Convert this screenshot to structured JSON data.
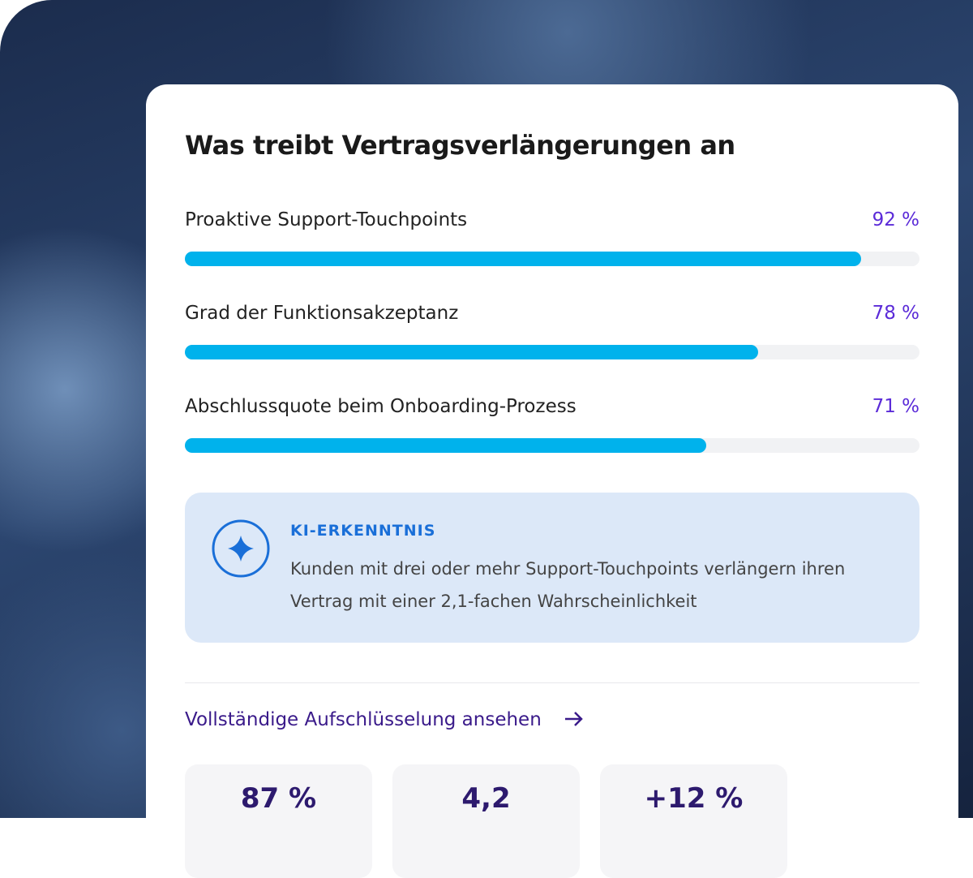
{
  "card": {
    "title": "Was treibt Vertragsverlängerungen an"
  },
  "chart_data": {
    "type": "bar",
    "orientation": "horizontal",
    "categories": [
      "Proaktive Support-Touchpoints",
      "Grad der Funktionsakzeptanz",
      "Abschlussquote beim Onboarding-Prozess"
    ],
    "values": [
      92,
      78,
      71
    ],
    "value_labels": [
      "92 %",
      "78 %",
      "71 %"
    ],
    "xlim": [
      0,
      100
    ],
    "color": "#00b2ec"
  },
  "insight": {
    "heading": "KI-ERKENNTNIS",
    "text": "Kunden mit drei oder mehr Support-Touchpoints verlängern ihren Vertrag mit einer 2,1-fachen Wahrscheinlichkeit"
  },
  "link": {
    "text": "Vollständige Aufschlüsselung ansehen"
  },
  "stats": [
    "87 %",
    "4,2",
    "+12 %"
  ]
}
